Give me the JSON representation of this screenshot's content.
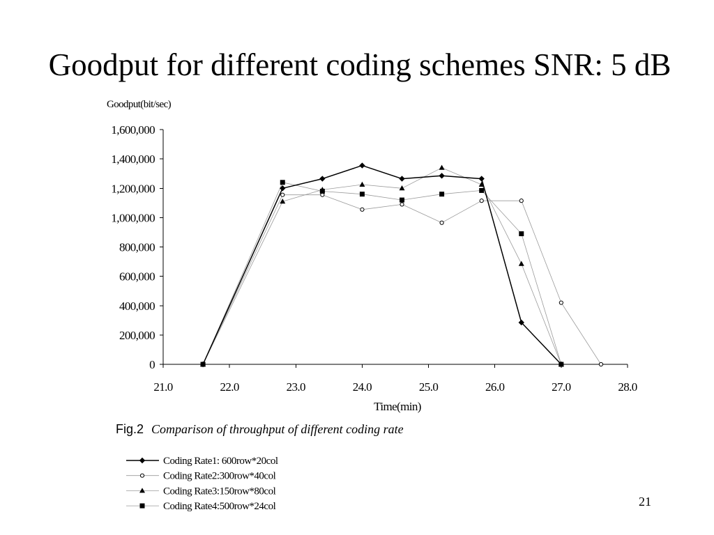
{
  "chart_data": {
    "type": "line",
    "title": "Goodput for different coding schemes SNR: 5 dB",
    "ylabel": "Goodput(bit/sec)",
    "xlabel": "Time(min)",
    "caption_label": "Fig.2",
    "caption": "Comparison of throughput of different coding rate",
    "xlim": [
      21,
      28
    ],
    "ylim": [
      0,
      1600000
    ],
    "x_ticks": [
      21,
      22,
      23,
      24,
      25,
      26,
      27,
      28
    ],
    "x_tick_labels": [
      "21.0",
      "22.0",
      "23.0",
      "24.0",
      "25.0",
      "26.0",
      "27.0",
      "28.0"
    ],
    "y_ticks": [
      0,
      200000,
      400000,
      600000,
      800000,
      1000000,
      1200000,
      1400000,
      1600000
    ],
    "y_tick_labels": [
      "0",
      "200,000",
      "400,000",
      "600,000",
      "800,000",
      "1,000,000",
      "1,200,000",
      "1,400,000",
      "1,600,000"
    ],
    "grid": false,
    "legend_position": "bottom-left",
    "series": [
      {
        "name": "Coding Rate1: 600row*20col",
        "marker": "diamond",
        "line_color": "#000000",
        "x": [
          21.6,
          22.8,
          23.4,
          24.0,
          24.6,
          25.2,
          25.8,
          26.4,
          27.0
        ],
        "y": [
          0,
          1200000,
          1265000,
          1355000,
          1265000,
          1285000,
          1265000,
          285000,
          0
        ]
      },
      {
        "name": "Coding Rate2:300row*40col",
        "marker": "open-circle",
        "line_color": "#9a9a9a",
        "x": [
          21.6,
          22.8,
          23.4,
          24.0,
          24.6,
          25.2,
          25.8,
          26.4,
          27.0,
          27.6
        ],
        "y": [
          0,
          1155000,
          1155000,
          1055000,
          1090000,
          965000,
          1115000,
          1115000,
          420000,
          0
        ]
      },
      {
        "name": "Coding Rate3:150row*80col",
        "marker": "triangle",
        "line_color": "#9a9a9a",
        "x": [
          21.6,
          22.8,
          23.4,
          24.0,
          24.6,
          25.2,
          25.8,
          26.4,
          27.0
        ],
        "y": [
          0,
          1110000,
          1190000,
          1225000,
          1200000,
          1340000,
          1225000,
          685000,
          0
        ]
      },
      {
        "name": "Coding Rate4:500row*24col",
        "marker": "square",
        "line_color": "#9a9a9a",
        "x": [
          21.6,
          22.8,
          23.4,
          24.0,
          24.6,
          25.2,
          25.8,
          26.4,
          27.0
        ],
        "y": [
          0,
          1240000,
          1180000,
          1160000,
          1120000,
          1160000,
          1185000,
          890000,
          0
        ]
      }
    ]
  },
  "slide": {
    "page_number": "21"
  }
}
